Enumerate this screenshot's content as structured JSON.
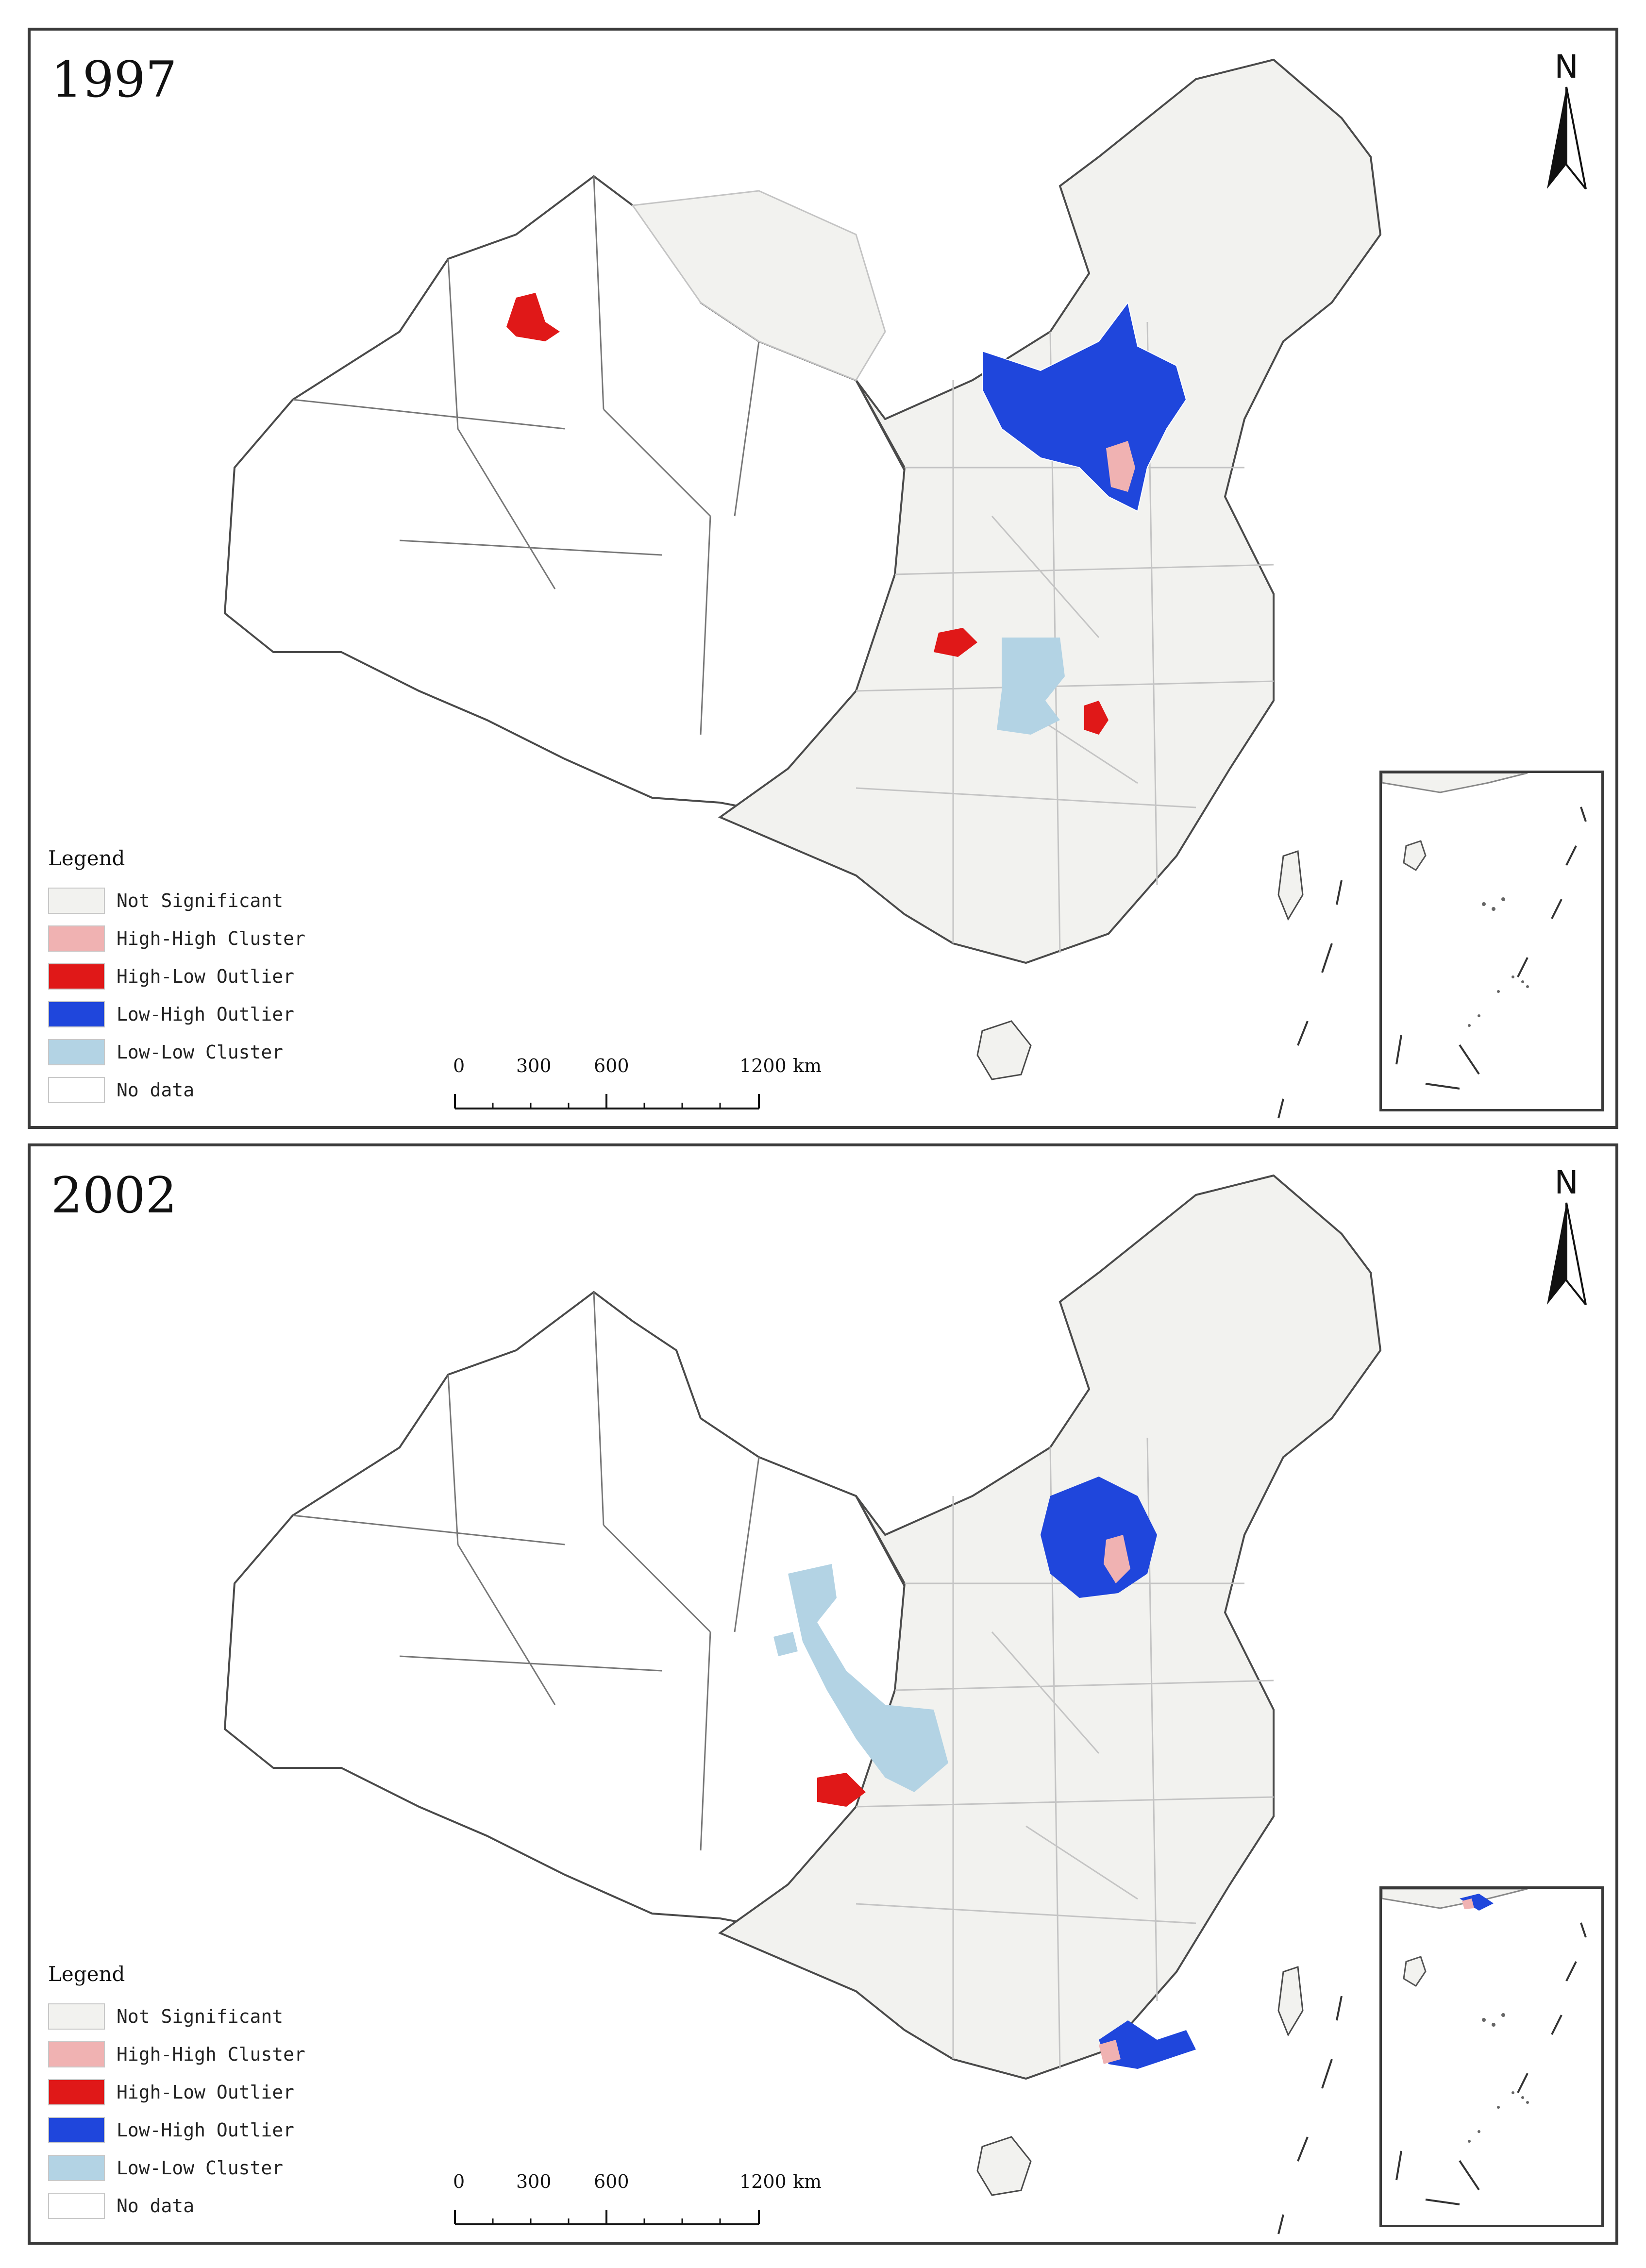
{
  "colors": {
    "not_significant": "#f2f2ef",
    "high_high": "#f0b2b2",
    "high_low": "#e01818",
    "low_high": "#1f46dc",
    "low_low": "#b3d3e4",
    "no_data": "#ffffff",
    "border": "#c4c4c4",
    "outline": "#4a4a4a"
  },
  "north_label": "N",
  "scale": {
    "ticks": [
      "0",
      "300",
      "600",
      "1200"
    ],
    "unit": "km"
  },
  "legend": {
    "title": "Legend",
    "items": [
      {
        "label": "Not Significant",
        "color_key": "not_significant"
      },
      {
        "label": "High-High Cluster",
        "color_key": "high_high"
      },
      {
        "label": "High-Low Outlier",
        "color_key": "high_low"
      },
      {
        "label": "Low-High Outlier",
        "color_key": "low_high"
      },
      {
        "label": "Low-Low Cluster",
        "color_key": "low_low"
      },
      {
        "label": "No data",
        "color_key": "no_data"
      }
    ]
  },
  "panels": [
    {
      "year": "1997"
    },
    {
      "year": "2002"
    }
  ]
}
